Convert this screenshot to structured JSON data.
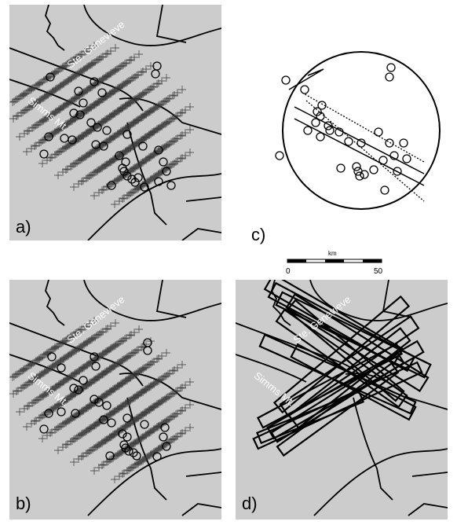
{
  "panels": {
    "a": {
      "label": "a)"
    },
    "b": {
      "label": "b)"
    },
    "c": {
      "label": "c)"
    },
    "d": {
      "label": "d)"
    }
  },
  "map_labels": {
    "ste_genevieve": "Ste. Genevieve",
    "simms_mt": "Simms Mt."
  },
  "scale": {
    "unit": "km",
    "start": "0",
    "end": "50"
  },
  "colors": {
    "land": "#cccccc",
    "ink": "#000000",
    "label_text": "#ffffff"
  }
}
